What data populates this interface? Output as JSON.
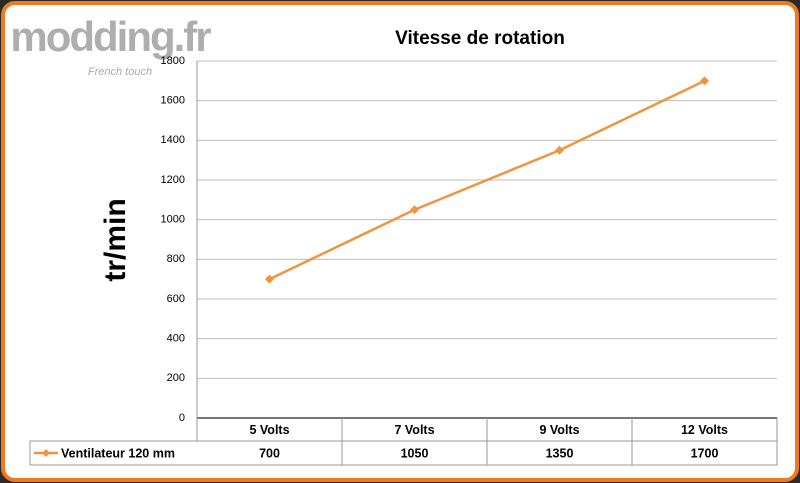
{
  "logo": {
    "name": "modding.fr",
    "tagline": "French touch"
  },
  "chart_data": {
    "type": "line",
    "title": "Vitesse de rotation",
    "y_label": "tr/min",
    "categories": [
      "5 Volts",
      "7 Volts",
      "9 Volts",
      "12 Volts"
    ],
    "series": [
      {
        "name": "Ventilateur 120 mm",
        "color": "#f0953f",
        "values": [
          700,
          1050,
          1350,
          1700
        ]
      }
    ],
    "ylim": [
      0,
      1800
    ],
    "yticks": [
      0,
      200,
      400,
      600,
      800,
      1000,
      1200,
      1400,
      1600,
      1800
    ],
    "grid": true
  }
}
